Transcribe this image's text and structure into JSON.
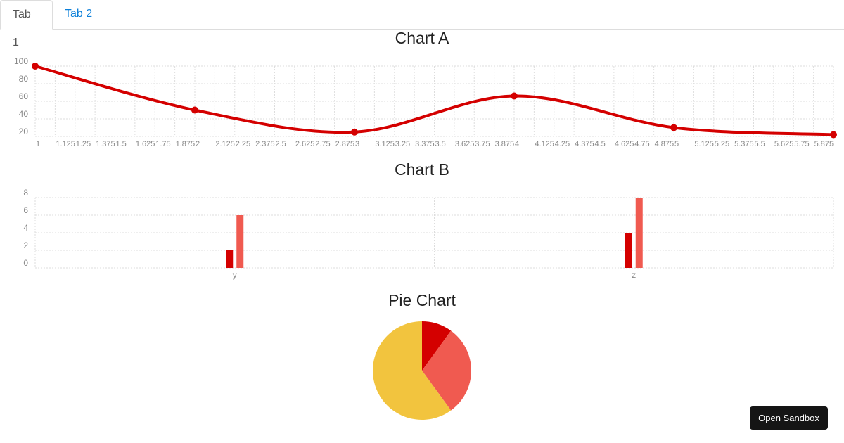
{
  "tabs": [
    "Tab 1",
    "Tab 2"
  ],
  "button": "Open Sandbox",
  "chart_data": [
    {
      "type": "line",
      "title": "Chart A",
      "x": [
        1,
        2,
        3,
        4,
        5,
        6
      ],
      "series": [
        {
          "color": "#d40000",
          "values": [
            100,
            50,
            25,
            66,
            30,
            22
          ]
        }
      ],
      "xlim": [
        1,
        6
      ],
      "xticks": [
        1,
        1.125,
        1.25,
        1.375,
        1.5,
        1.625,
        1.75,
        1.875,
        2,
        2.125,
        2.25,
        2.375,
        2.5,
        2.625,
        2.75,
        2.875,
        3,
        3.125,
        3.25,
        3.375,
        3.5,
        3.625,
        3.75,
        3.875,
        4,
        4.125,
        4.25,
        4.375,
        4.5,
        4.625,
        4.75,
        4.875,
        5,
        5.125,
        5.25,
        5.375,
        5.5,
        5.625,
        5.75,
        5.875,
        6
      ],
      "ylim": [
        20,
        100
      ],
      "yticks": [
        20,
        40,
        60,
        80,
        100
      ],
      "grid": true
    },
    {
      "type": "bar",
      "title": "Chart B",
      "categories": [
        "y",
        "z"
      ],
      "series": [
        {
          "color": "#d40000",
          "values": [
            2,
            4
          ]
        },
        {
          "color": "#f05a50",
          "values": [
            6,
            8
          ]
        }
      ],
      "ylim": [
        0,
        8
      ],
      "yticks": [
        0,
        2,
        4,
        6,
        8
      ],
      "grid": true
    },
    {
      "type": "pie",
      "title": "Pie Chart",
      "values": [
        10,
        30,
        60
      ],
      "colors": [
        "#d40000",
        "#f05a50",
        "#f2c43e"
      ]
    }
  ]
}
